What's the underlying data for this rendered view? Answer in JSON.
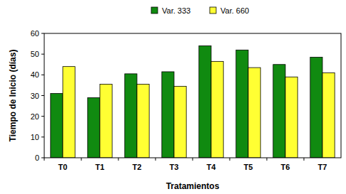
{
  "chart_data": {
    "type": "bar",
    "x_label": "Tratamientos",
    "y_label": "Tiempo de Inicio (días)",
    "categories": [
      "T0",
      "T1",
      "T2",
      "T3",
      "T4",
      "T5",
      "T6",
      "T7"
    ],
    "series": [
      {
        "name": "Var. 333",
        "color": "#108a10",
        "values": [
          31,
          29,
          40.5,
          41.5,
          54,
          52,
          45,
          48.5
        ]
      },
      {
        "name": "Var. 660",
        "color": "#ffff33",
        "values": [
          44,
          35.5,
          35.5,
          34.5,
          46.5,
          43.5,
          39,
          41
        ]
      }
    ],
    "ylim": [
      0,
      60
    ],
    "yticks": [
      0,
      10,
      20,
      30,
      40,
      50,
      60
    ],
    "grid": false,
    "legend": "top"
  }
}
